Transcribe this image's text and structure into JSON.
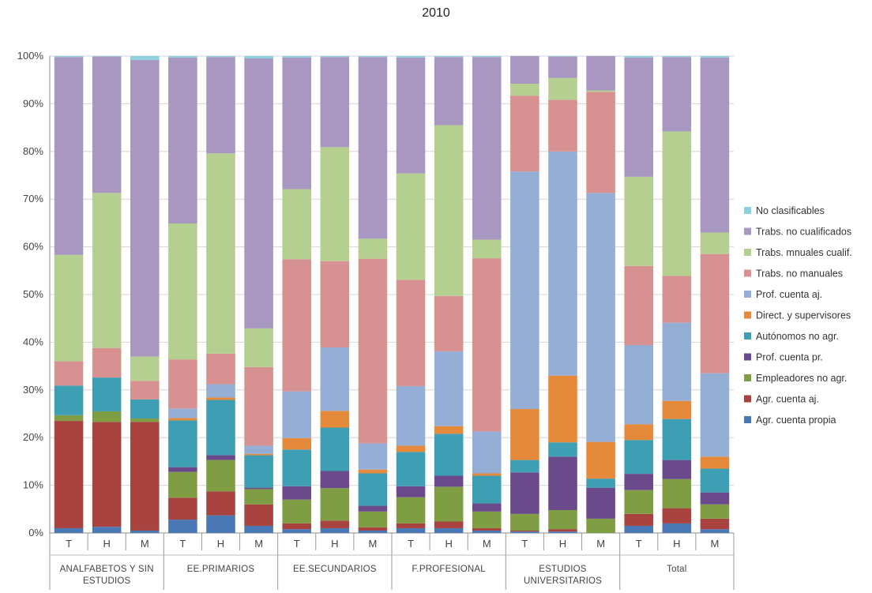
{
  "chart_data": {
    "type": "bar",
    "stacked": true,
    "percent": true,
    "title": "2010",
    "ylim": [
      0,
      100
    ],
    "yticks": [
      "0%",
      "10%",
      "20%",
      "30%",
      "40%",
      "50%",
      "60%",
      "70%",
      "80%",
      "90%",
      "100%"
    ],
    "grid": true,
    "legend_position": "right",
    "groups": [
      {
        "label_lines": [
          "ANALFABETOS Y SIN",
          "ESTUDIOS"
        ],
        "categories": [
          "T",
          "H",
          "M"
        ]
      },
      {
        "label_lines": [
          "EE.PRIMARIOS"
        ],
        "categories": [
          "T",
          "H",
          "M"
        ]
      },
      {
        "label_lines": [
          "EE.SECUNDARIOS"
        ],
        "categories": [
          "T",
          "H",
          "M"
        ]
      },
      {
        "label_lines": [
          "F.PROFESIONAL"
        ],
        "categories": [
          "T",
          "H",
          "M"
        ]
      },
      {
        "label_lines": [
          "ESTUDIOS",
          "UNIVERSITARIOS"
        ],
        "categories": [
          "T",
          "H",
          "M"
        ]
      },
      {
        "label_lines": [
          "Total"
        ],
        "categories": [
          "T",
          "H",
          "M"
        ]
      }
    ],
    "series": [
      {
        "name": "Agr. cuenta propia",
        "color": "#4a78b5",
        "values": [
          1.0,
          1.3,
          0.5,
          2.8,
          3.7,
          1.5,
          0.8,
          1.0,
          0.5,
          1.0,
          1.0,
          0.5,
          0.3,
          0.3,
          0.0,
          1.5,
          2.0,
          0.8
        ]
      },
      {
        "name": "Agr. cuenta aj.",
        "color": "#a84340",
        "values": [
          22.5,
          22.0,
          22.8,
          4.6,
          5.0,
          4.5,
          1.2,
          1.6,
          0.7,
          1.0,
          1.4,
          0.5,
          0.2,
          0.5,
          0.0,
          2.5,
          3.2,
          2.2
        ]
      },
      {
        "name": "Empleadores no agr.",
        "color": "#7f9e43",
        "values": [
          1.2,
          2.2,
          0.7,
          5.4,
          6.6,
          3.2,
          5.0,
          6.8,
          3.3,
          5.5,
          7.3,
          3.5,
          3.5,
          4.0,
          3.0,
          5.0,
          6.1,
          3.0
        ]
      },
      {
        "name": "Prof. cuenta pr.",
        "color": "#6a4a8a",
        "values": [
          0.0,
          0.0,
          0.0,
          1.0,
          1.0,
          0.3,
          2.8,
          3.6,
          1.2,
          2.3,
          2.3,
          1.7,
          8.7,
          11.2,
          6.5,
          3.4,
          4.0,
          2.5
        ]
      },
      {
        "name": "Autónomos no agr.",
        "color": "#3e9fb4",
        "values": [
          6.2,
          7.1,
          4.0,
          9.8,
          11.6,
          6.8,
          7.7,
          9.1,
          6.8,
          7.2,
          8.8,
          5.8,
          2.6,
          3.0,
          1.9,
          7.1,
          8.6,
          5.0
        ]
      },
      {
        "name": "Direct. y supervisores",
        "color": "#e58a3a",
        "values": [
          0.0,
          0.0,
          0.0,
          0.5,
          0.5,
          0.3,
          2.4,
          3.5,
          0.8,
          1.3,
          1.6,
          0.5,
          10.7,
          14.0,
          7.7,
          3.3,
          3.8,
          2.5
        ]
      },
      {
        "name": "Prof. cuenta aj.",
        "color": "#95aed6",
        "values": [
          0.0,
          0.0,
          0.0,
          2.0,
          2.8,
          1.7,
          9.8,
          13.3,
          5.5,
          12.5,
          15.7,
          8.8,
          49.8,
          47.0,
          52.2,
          16.6,
          16.4,
          17.5
        ]
      },
      {
        "name": "Trabs. no manuales",
        "color": "#d79191",
        "values": [
          5.1,
          6.2,
          3.9,
          10.3,
          6.4,
          16.5,
          27.7,
          18.1,
          38.7,
          22.3,
          11.6,
          36.3,
          15.9,
          10.8,
          21.2,
          16.6,
          9.8,
          25.0
        ]
      },
      {
        "name": "Trabs. mnuales cualif.",
        "color": "#b5cf91",
        "values": [
          22.3,
          32.5,
          5.1,
          28.5,
          42.0,
          8.1,
          14.7,
          23.9,
          4.2,
          22.3,
          35.8,
          3.9,
          2.5,
          4.6,
          0.3,
          18.7,
          30.3,
          4.5
        ]
      },
      {
        "name": "Trabs. no cualificados",
        "color": "#a897c1",
        "values": [
          41.5,
          28.6,
          62.2,
          34.8,
          20.2,
          56.6,
          27.6,
          18.9,
          38.1,
          24.3,
          14.3,
          38.3,
          5.8,
          4.5,
          7.2,
          25.0,
          15.6,
          36.7
        ]
      },
      {
        "name": "No clasificables",
        "color": "#8ecfe0",
        "values": [
          0.2,
          0.1,
          0.8,
          0.3,
          0.2,
          0.5,
          0.3,
          0.2,
          0.2,
          0.3,
          0.2,
          0.2,
          0.0,
          0.1,
          0.0,
          0.3,
          0.2,
          0.3
        ]
      }
    ]
  }
}
